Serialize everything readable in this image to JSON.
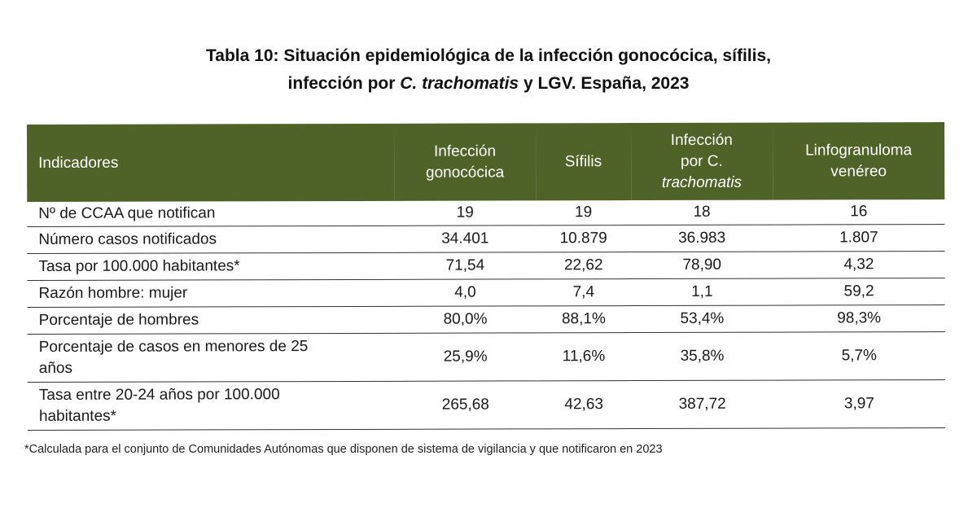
{
  "title": {
    "line1": "Tabla 10: Situación epidemiológica de la infección gonocócica, sífilis,",
    "line2_prefix": "infección por ",
    "line2_italic": "C. trachomatis",
    "line2_suffix": " y LGV. España, 2023"
  },
  "table": {
    "header_color": "#4f6228",
    "headers": {
      "indicadores": "Indicadores",
      "gono_1": "Infección",
      "gono_2": "gonocócica",
      "sifilis": "Sífilis",
      "ct_1": "Infección",
      "ct_2": "por C.",
      "ct_3": "trachomatis",
      "lgv_1": "Linfogranuloma",
      "lgv_2": "venéreo"
    },
    "rows": [
      {
        "label": "Nº de CCAA que notifican",
        "values": [
          "19",
          "19",
          "18",
          "16"
        ]
      },
      {
        "label": "Número casos notificados",
        "values": [
          "34.401",
          "10.879",
          "36.983",
          "1.807"
        ]
      },
      {
        "label": "Tasa por 100.000 habitantes*",
        "values": [
          "71,54",
          "22,62",
          "78,90",
          "4,32"
        ]
      },
      {
        "label": "Razón hombre: mujer",
        "values": [
          "4,0",
          "7,4",
          "1,1",
          "59,2"
        ]
      },
      {
        "label": "Porcentaje de hombres",
        "values": [
          "80,0%",
          "88,1%",
          "53,4%",
          "98,3%"
        ]
      },
      {
        "label_1": "Porcentaje de casos en menores de 25",
        "label_2": "años",
        "values": [
          "25,9%",
          "11,6%",
          "35,8%",
          "5,7%"
        ]
      },
      {
        "label_1": "Tasa entre 20-24 años por 100.000",
        "label_2": "habitantes*",
        "values": [
          "265,68",
          "42,63",
          "387,72",
          "3,97"
        ]
      }
    ]
  },
  "footnote": "*Calculada para el conjunto de Comunidades Autónomas que disponen de sistema de vigilancia y que notificaron en 2023"
}
